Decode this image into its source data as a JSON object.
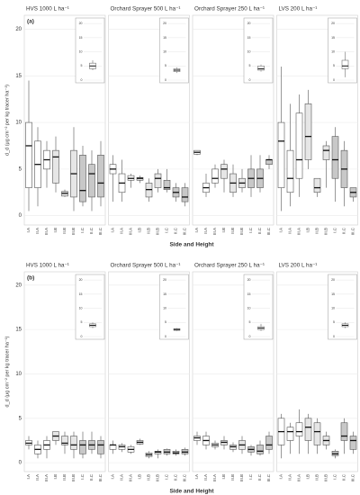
{
  "chart_data": [
    {
      "type": "box",
      "panel_label": "(a)",
      "title": "HVS 1000 L ha⁻¹",
      "ylabel": "d_d (μg cm⁻² per kg tracer ha⁻¹)",
      "xlabel": "Side and Height",
      "categories": [
        "I.A",
        "II.A",
        "III.A",
        "I.B",
        "II.B",
        "III.B",
        "I.C",
        "II.C",
        "III.C"
      ],
      "colors": [
        "#ffffff",
        "#ffffff",
        "#ffffff",
        "#e6e6e6",
        "#e6e6e6",
        "#e6e6e6",
        "#c8c8c8",
        "#c8c8c8",
        "#c8c8c8"
      ],
      "min": [
        0.5,
        1,
        3,
        2.5,
        2,
        0.5,
        1,
        0.5,
        1
      ],
      "q1": [
        3,
        3,
        5,
        3.5,
        2.1,
        2,
        1.5,
        2,
        2
      ],
      "median": [
        7.5,
        5.5,
        6,
        6.3,
        2.4,
        4.5,
        2.7,
        4.5,
        3.5
      ],
      "q3": [
        10,
        8,
        7,
        7,
        2.6,
        7,
        6.5,
        5.5,
        6.5
      ],
      "max": [
        14.5,
        9.5,
        8,
        8.5,
        2.8,
        9.5,
        7.5,
        7,
        8
      ],
      "ylim": [
        -1,
        21.5
      ],
      "yticks": [
        0,
        5,
        10,
        15,
        20
      ],
      "inset": {
        "min": 3.5,
        "q1": 4,
        "median": 5,
        "q3": 6,
        "max": 7,
        "ylim": [
          0,
          21
        ],
        "yticks": [
          0,
          5,
          10,
          15,
          20
        ]
      }
    },
    {
      "type": "box",
      "title": "Orchard Sprayer 500 L ha⁻¹",
      "categories": [
        "I.A",
        "II.A",
        "III.A",
        "I.B",
        "II.B",
        "III.B",
        "I.C",
        "II.C",
        "III.C"
      ],
      "colors": [
        "#ffffff",
        "#ffffff",
        "#ffffff",
        "#e6e6e6",
        "#e6e6e6",
        "#e6e6e6",
        "#c8c8c8",
        "#c8c8c8",
        "#c8c8c8"
      ],
      "min": [
        1.5,
        1.5,
        3,
        3.5,
        1.5,
        2.5,
        2.5,
        1.5,
        1
      ],
      "q1": [
        4.5,
        2.5,
        3.8,
        3.8,
        2,
        3,
        2.8,
        2,
        1.5
      ],
      "median": [
        5,
        3.5,
        4,
        4,
        2.8,
        4,
        3,
        2.5,
        2
      ],
      "q3": [
        5.5,
        4.5,
        4.3,
        4.1,
        3.5,
        4.5,
        3.8,
        3,
        3
      ],
      "max": [
        6.5,
        6,
        4.5,
        4.3,
        4,
        5,
        5,
        3.5,
        3.5
      ],
      "ylim": [
        -1,
        21.5
      ],
      "yticks": [
        0,
        5,
        10,
        15,
        20
      ],
      "inset": {
        "min": 2.5,
        "q1": 3,
        "median": 3.5,
        "q3": 4,
        "max": 4.5,
        "ylim": [
          0,
          21
        ],
        "yticks": [
          0,
          5,
          10,
          15,
          20
        ]
      }
    },
    {
      "type": "box",
      "title": "Orchard Sprayer 250 L ha⁻¹",
      "categories": [
        "I.A",
        "II.A",
        "III.A",
        "I.B",
        "II.B",
        "III.B",
        "I.C",
        "II.C",
        "III.C"
      ],
      "colors": [
        "#ffffff",
        "#ffffff",
        "#ffffff",
        "#e6e6e6",
        "#e6e6e6",
        "#e6e6e6",
        "#c8c8c8",
        "#c8c8c8",
        "#c8c8c8"
      ],
      "min": [
        6.5,
        2,
        3,
        2.5,
        2,
        2.5,
        2,
        2.5,
        5
      ],
      "q1": [
        6.6,
        2.5,
        3.5,
        4,
        2.5,
        3,
        3,
        3,
        5.5
      ],
      "median": [
        6.8,
        3,
        4,
        5,
        3.5,
        3.5,
        4,
        4,
        6
      ],
      "q3": [
        7,
        3.5,
        5,
        5.5,
        4.5,
        4,
        5,
        5,
        6
      ],
      "max": [
        7,
        4.5,
        5.5,
        6,
        5.5,
        5,
        6.5,
        6.5,
        6.5
      ],
      "ylim": [
        -1,
        21.5
      ],
      "yticks": [
        0,
        5,
        10,
        15,
        20
      ],
      "inset": {
        "min": 3,
        "q1": 3.5,
        "median": 4,
        "q3": 5,
        "max": 5.5,
        "ylim": [
          0,
          21
        ],
        "yticks": [
          0,
          5,
          10,
          15,
          20
        ]
      }
    },
    {
      "type": "box",
      "title": "LVS 200 L ha⁻¹",
      "categories": [
        "I.A",
        "II.A",
        "III.A",
        "I.B",
        "II.B",
        "III.B",
        "I.C",
        "II.C",
        "III.C"
      ],
      "colors": [
        "#ffffff",
        "#ffffff",
        "#ffffff",
        "#e6e6e6",
        "#e6e6e6",
        "#e6e6e6",
        "#c8c8c8",
        "#c8c8c8",
        "#c8c8c8"
      ],
      "min": [
        0.5,
        1,
        2,
        5,
        2,
        3,
        1.5,
        1,
        1.5
      ],
      "q1": [
        3,
        2.5,
        4,
        6,
        2.5,
        6,
        4,
        3,
        2
      ],
      "median": [
        8,
        4,
        6,
        8.5,
        3,
        7,
        6,
        5,
        2.5
      ],
      "q3": [
        10,
        7,
        11,
        12,
        4,
        7.5,
        8.5,
        7,
        3
      ],
      "max": [
        16,
        12,
        13,
        13.5,
        4,
        8,
        9.5,
        8,
        3
      ],
      "ylim": [
        -1,
        21.5
      ],
      "yticks": [
        0,
        5,
        10,
        15,
        20
      ],
      "inset": {
        "min": 1,
        "q1": 4,
        "median": 5,
        "q3": 7,
        "max": 10,
        "ylim": [
          0,
          21
        ],
        "yticks": [
          0,
          5,
          10,
          15,
          20
        ]
      }
    },
    {
      "type": "box",
      "panel_label": "(b)",
      "title": "HVS 1000 L ha⁻¹",
      "ylabel": "d_d (μg cm⁻² per kg tracer ha⁻¹)",
      "xlabel": "Side and Height",
      "categories": [
        "I.A",
        "II.A",
        "III.A",
        "I.B",
        "II.B",
        "III.B",
        "I.C",
        "II.C",
        "III.C"
      ],
      "colors": [
        "#ffffff",
        "#ffffff",
        "#ffffff",
        "#e6e6e6",
        "#e6e6e6",
        "#e6e6e6",
        "#c8c8c8",
        "#c8c8c8",
        "#c8c8c8"
      ],
      "min": [
        1.5,
        0.5,
        0.5,
        2,
        1,
        0.5,
        0.5,
        1,
        0.5
      ],
      "q1": [
        2,
        1,
        1.5,
        2.5,
        2,
        1.5,
        1,
        1.5,
        1
      ],
      "median": [
        2.2,
        1.5,
        2,
        3,
        2.2,
        2,
        2,
        2,
        2
      ],
      "q3": [
        2.5,
        2,
        2.5,
        3.5,
        3,
        3,
        2.5,
        2.5,
        2.5
      ],
      "max": [
        3,
        2.5,
        3,
        3.5,
        3.5,
        3.5,
        3.5,
        3.5,
        3
      ],
      "ylim": [
        -1,
        21.5
      ],
      "yticks": [
        0,
        5,
        10,
        15,
        20
      ],
      "inset": {
        "min": 3,
        "q1": 3.5,
        "median": 4,
        "q3": 4.5,
        "max": 5,
        "ylim": [
          0,
          21
        ],
        "yticks": [
          0,
          5,
          10,
          15,
          20
        ]
      }
    },
    {
      "type": "box",
      "title": "Orchard Sprayer 500 L ha⁻¹",
      "categories": [
        "I.A",
        "II.A",
        "III.A",
        "I.B",
        "II.B",
        "III.B",
        "I.C",
        "II.C",
        "III.C"
      ],
      "colors": [
        "#ffffff",
        "#ffffff",
        "#ffffff",
        "#e6e6e6",
        "#e6e6e6",
        "#e6e6e6",
        "#c8c8c8",
        "#c8c8c8",
        "#c8c8c8"
      ],
      "min": [
        1,
        1.2,
        1,
        2,
        0.5,
        0.5,
        0.8,
        0.8,
        0.8
      ],
      "q1": [
        1.5,
        1.5,
        1.2,
        2.1,
        0.7,
        1,
        1,
        1,
        1
      ],
      "median": [
        2,
        1.8,
        1.5,
        2.3,
        0.9,
        1.2,
        1.2,
        1.1,
        1.2
      ],
      "q3": [
        2,
        2,
        1.8,
        2.5,
        1.1,
        1.3,
        1.5,
        1.3,
        1.5
      ],
      "max": [
        2.5,
        2.2,
        2,
        2.7,
        1.3,
        1.5,
        1.6,
        1.5,
        1.7
      ],
      "ylim": [
        -1,
        21.5
      ],
      "yticks": [
        0,
        5,
        10,
        15,
        20
      ],
      "inset": {
        "min": 2,
        "q1": 2.2,
        "median": 2.5,
        "q3": 2.8,
        "max": 3,
        "ylim": [
          0,
          21
        ],
        "yticks": [
          0,
          5,
          10,
          15,
          20
        ]
      }
    },
    {
      "type": "box",
      "title": "Orchard Sprayer 250 L ha⁻¹",
      "categories": [
        "I.A",
        "II.A",
        "III.A",
        "I.B",
        "II.B",
        "III.B",
        "I.C",
        "II.C",
        "III.C"
      ],
      "colors": [
        "#ffffff",
        "#ffffff",
        "#ffffff",
        "#e6e6e6",
        "#e6e6e6",
        "#e6e6e6",
        "#c8c8c8",
        "#c8c8c8",
        "#c8c8c8"
      ],
      "min": [
        2,
        1.5,
        1.5,
        1.5,
        1.2,
        1,
        0.8,
        0.8,
        1
      ],
      "q1": [
        2.5,
        2,
        1.8,
        2,
        1.5,
        1.5,
        1.2,
        1,
        1.5
      ],
      "median": [
        2.8,
        2.5,
        2,
        2.3,
        1.8,
        2,
        1.5,
        1.3,
        2
      ],
      "q3": [
        3,
        3,
        2.2,
        2.5,
        2,
        2.5,
        1.8,
        2,
        3
      ],
      "max": [
        3.5,
        3.5,
        2.5,
        3,
        2.3,
        3,
        2,
        2.5,
        3.5
      ],
      "ylim": [
        -1,
        21.5
      ],
      "yticks": [
        0,
        5,
        10,
        15,
        20
      ],
      "inset": {
        "min": 2,
        "q1": 2.5,
        "median": 3,
        "q3": 3.5,
        "max": 4.5,
        "ylim": [
          0,
          21
        ],
        "yticks": [
          0,
          5,
          10,
          15,
          20
        ]
      }
    },
    {
      "type": "box",
      "title": "LVS 200 L ha⁻¹",
      "categories": [
        "I.A",
        "II.A",
        "III.A",
        "I.B",
        "II.B",
        "III.B",
        "I.C",
        "II.C",
        "III.C"
      ],
      "colors": [
        "#ffffff",
        "#ffffff",
        "#ffffff",
        "#e6e6e6",
        "#e6e6e6",
        "#e6e6e6",
        "#c8c8c8",
        "#c8c8c8",
        "#c8c8c8"
      ],
      "min": [
        0.5,
        1,
        1,
        1,
        1,
        1.5,
        0.5,
        1,
        1
      ],
      "q1": [
        2,
        2.5,
        3,
        2.5,
        2,
        2,
        0.8,
        2.5,
        1.5
      ],
      "median": [
        3.5,
        3.5,
        3.5,
        4,
        3.5,
        2.5,
        1,
        3,
        2.5
      ],
      "q3": [
        5,
        4,
        4.5,
        5,
        4.5,
        3,
        1.3,
        4.5,
        3
      ],
      "max": [
        5.5,
        4.5,
        6,
        5.5,
        5,
        3.5,
        1.5,
        5,
        3.5
      ],
      "ylim": [
        -1,
        21.5
      ],
      "yticks": [
        0,
        5,
        10,
        15,
        20
      ],
      "inset": {
        "min": 3,
        "q1": 3.5,
        "median": 4,
        "q3": 4.5,
        "max": 5,
        "ylim": [
          0,
          21
        ],
        "yticks": [
          0,
          5,
          10,
          15,
          20
        ]
      }
    }
  ]
}
